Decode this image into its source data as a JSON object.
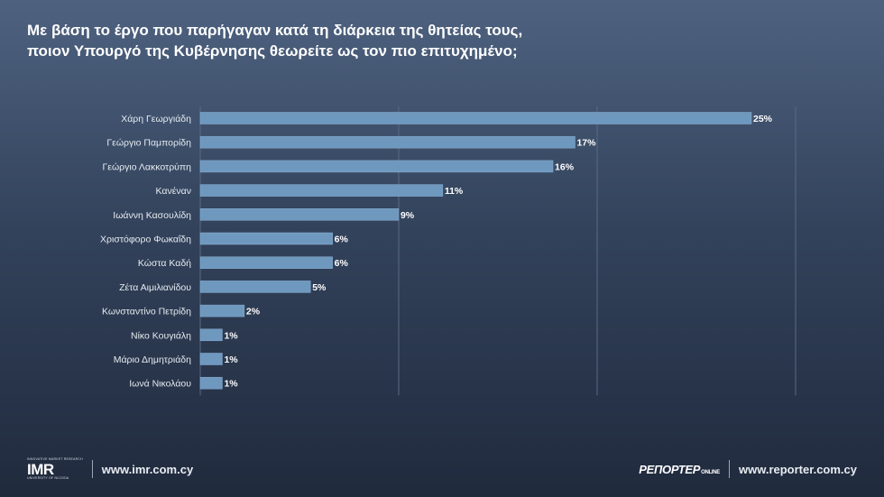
{
  "title_line1": "Με βάση το έργο που παρήγαγαν κατά τη διάρκεια της θητείας τους,",
  "title_line2": "ποιον Υπουργό της Κυβέρνησης θεωρείτε ως τον πιο επιτυχημένο;",
  "colors": {
    "bar": "#6f98bf",
    "bar_edge": "#88aed0",
    "grid": "#5a6a82"
  },
  "chart_data": {
    "type": "bar",
    "orientation": "horizontal",
    "categories": [
      "Χάρη Γεωργιάδη",
      "Γεώργιο Παμπορίδη",
      "Γεώργιο Λακκοτρύπη",
      "Κανέναν",
      "Ιωάννη Κασουλίδη",
      "Χριστόφορο Φωκαΐδη",
      "Κώστα Καδή",
      "Ζέτα Αιμιλιανίδου",
      "Κωνσταντίνο Πετρίδη",
      "Νίκο Κουγιάλη",
      "Μάριο Δημητριάδη",
      "Ιωνά Νικολάου"
    ],
    "values": [
      25,
      17,
      16,
      11,
      9,
      6,
      6,
      5,
      2,
      1,
      1,
      1
    ],
    "value_labels": [
      "25%",
      "17%",
      "16%",
      "11%",
      "9%",
      "6%",
      "6%",
      "5%",
      "2%",
      "1%",
      "1%",
      "1%"
    ],
    "xlim": [
      0,
      27
    ],
    "grid": true
  },
  "footer": {
    "left_logo_tagline": "INNOVATIVE MARKET RESEARCH",
    "left_logo_text": "IMR",
    "left_logo_sub": "UNIVERSITY OF NICOSIA",
    "left_url": "www.imr.com.cy",
    "right_logo_text": "РЕПОРТЕР",
    "right_logo_suffix": "ONLINE",
    "right_url": "www.reporter.com.cy"
  }
}
